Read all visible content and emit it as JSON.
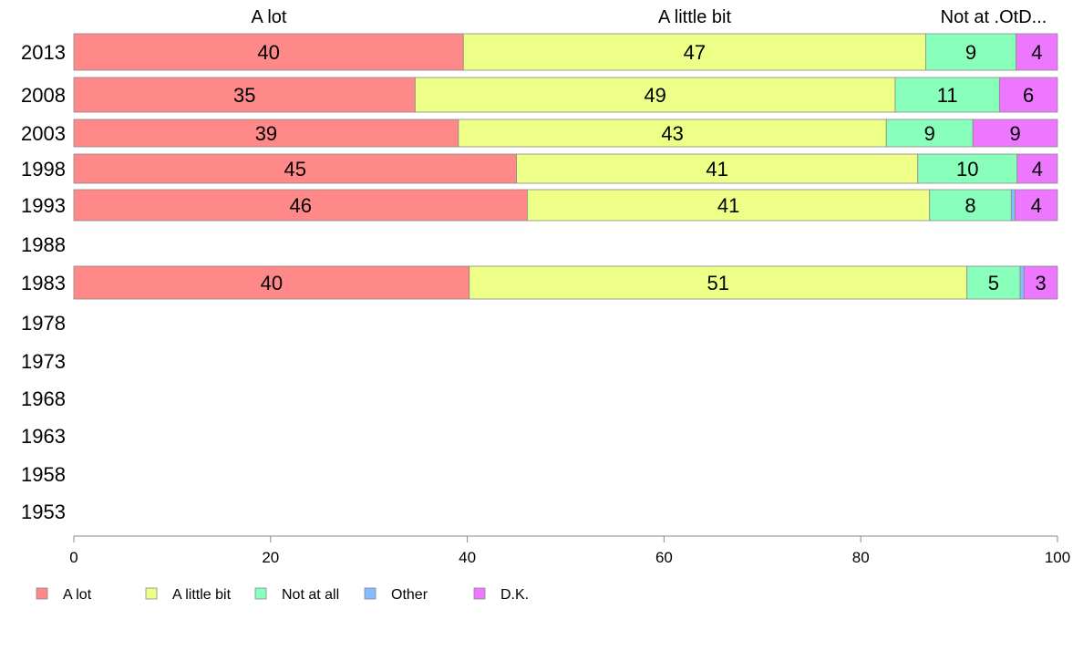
{
  "chart_data": {
    "type": "bar",
    "orientation": "horizontal",
    "stacked": true,
    "title": "",
    "xlabel": "",
    "ylabel": "",
    "xlim": [
      0,
      100
    ],
    "x_ticks": [
      0,
      20,
      40,
      60,
      80,
      100
    ],
    "grid": false,
    "legend_position": "bottom-left",
    "column_headers": [
      "A lot",
      "A little bit",
      "Not at .OtD..."
    ],
    "categories": [
      "2013",
      "2008",
      "2003",
      "1998",
      "1993",
      "1988",
      "1983",
      "1978",
      "1973",
      "1968",
      "1963",
      "1958",
      "1953"
    ],
    "series": [
      {
        "name": "A lot",
        "color": "#ff8888",
        "values": [
          39.6,
          34.7,
          39.1,
          45.0,
          46.1,
          null,
          40.2,
          null,
          null,
          null,
          null,
          null,
          null
        ],
        "labels": [
          "40",
          "35",
          "39",
          "45",
          "46",
          "",
          "40",
          "",
          "",
          "",
          "",
          "",
          ""
        ]
      },
      {
        "name": "A little bit",
        "color": "#eeff88",
        "values": [
          47.0,
          48.8,
          43.5,
          40.8,
          40.9,
          null,
          50.6,
          null,
          null,
          null,
          null,
          null,
          null
        ],
        "labels": [
          "47",
          "49",
          "43",
          "41",
          "41",
          "",
          "51",
          "",
          "",
          "",
          "",
          "",
          ""
        ]
      },
      {
        "name": "Not at all",
        "color": "#88ffbb",
        "values": [
          9.2,
          10.6,
          8.8,
          10.1,
          8.3,
          null,
          5.4,
          null,
          null,
          null,
          null,
          null,
          null
        ],
        "labels": [
          "9",
          "11",
          "9",
          "10",
          "8",
          "",
          "5",
          "",
          "",
          "",
          "",
          "",
          ""
        ]
      },
      {
        "name": "Other",
        "color": "#88bbff",
        "values": [
          0,
          0,
          0,
          0,
          0.4,
          null,
          0.4,
          null,
          null,
          null,
          null,
          null,
          null
        ],
        "labels": [
          "",
          "",
          "",
          "",
          "",
          "",
          "",
          "",
          "",
          "",
          "",
          "",
          ""
        ]
      },
      {
        "name": "D.K.",
        "color": "#ee77ff",
        "values": [
          4.2,
          5.9,
          8.6,
          4.1,
          4.3,
          null,
          3.4,
          null,
          null,
          null,
          null,
          null,
          null
        ],
        "labels": [
          "4",
          "6",
          "9",
          "4",
          "4",
          "",
          "3",
          "",
          "",
          "",
          "",
          "",
          ""
        ]
      }
    ]
  }
}
